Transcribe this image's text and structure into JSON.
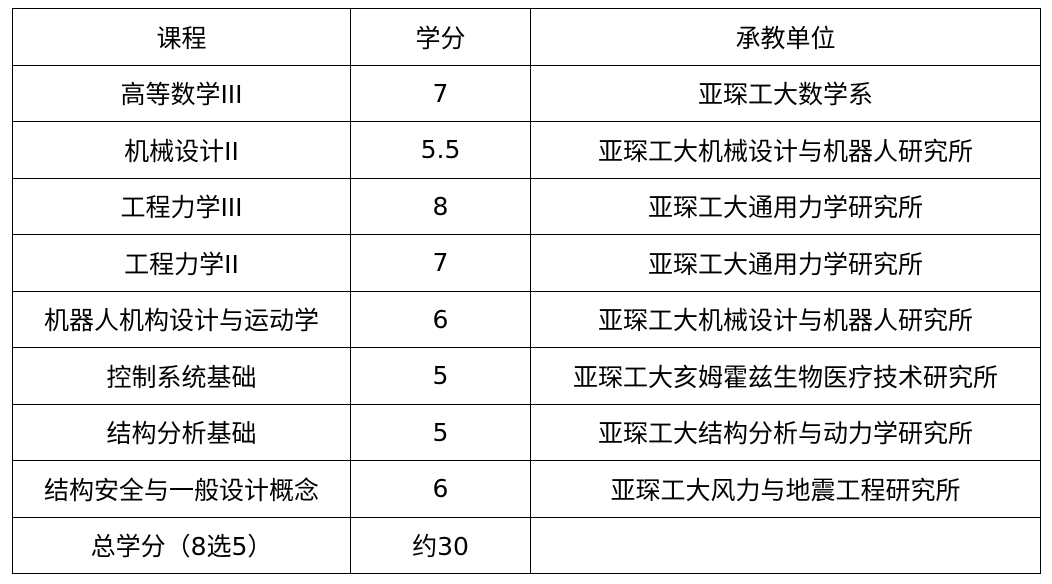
{
  "table": {
    "header": [
      "课程",
      "学分",
      "承教单位"
    ],
    "rows": [
      [
        "高等数学III",
        "7",
        "亚琛工大数学系"
      ],
      [
        "机械设计II",
        "5.5",
        "亚琛工大机械设计与机器人研究所"
      ],
      [
        "工程力学III",
        "8",
        "亚琛工大通用力学研究所"
      ],
      [
        "工程力学II",
        "7",
        "亚琛工大通用力学研究所"
      ],
      [
        "机器人机构设计与运动学",
        "6",
        "亚琛工大机械设计与机器人研究所"
      ],
      [
        "控制系统基础",
        "5",
        "亚琛工大亥姆霍兹生物医疗技术研究所"
      ],
      [
        "结构分析基础",
        "5",
        "亚琛工大结构分析与动力学研究所"
      ],
      [
        "结构安全与一般设计概念",
        "6",
        "亚琛工大风力与地震工程研究所"
      ],
      [
        "总学分（8选5）",
        "约30"
      ]
    ]
  }
}
